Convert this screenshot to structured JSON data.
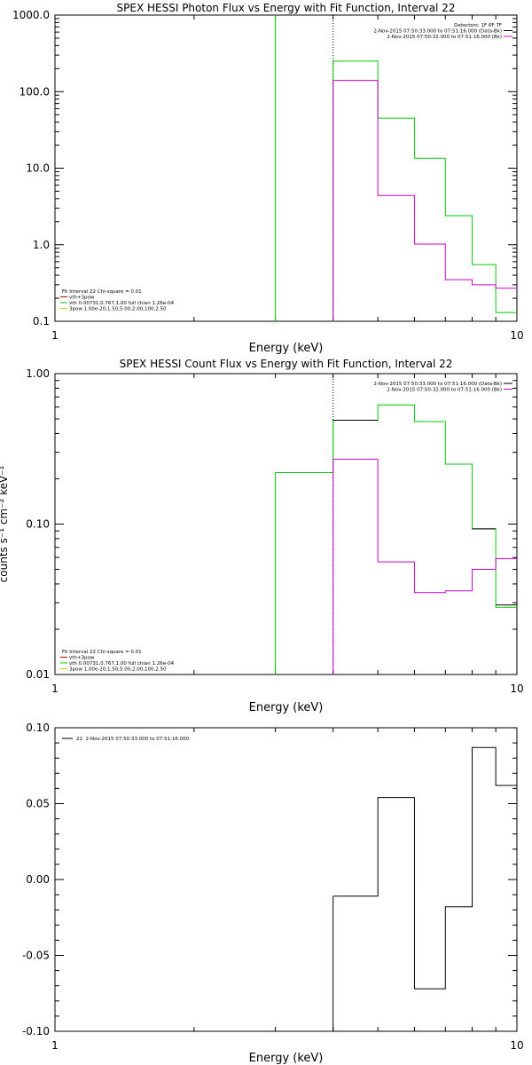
{
  "chart_data": [
    {
      "type": "line",
      "title": "SPEX HESSI Photon Flux vs Energy with Fit Function, Interval 22",
      "xlabel": "Energy (keV)",
      "ylabel": "",
      "xscale": "log",
      "yscale": "log",
      "xlim": [
        1,
        10
      ],
      "ylim": [
        0.1,
        1000
      ],
      "x_ticks": [
        {
          "v": 1,
          "label": "1"
        },
        {
          "v": 10,
          "label": "10"
        }
      ],
      "y_ticks": [
        {
          "v": 0.1,
          "label": "0.1"
        },
        {
          "v": 1,
          "label": "1.0"
        },
        {
          "v": 10,
          "label": "10.0"
        },
        {
          "v": 100,
          "label": "100.0"
        },
        {
          "v": 1000,
          "label": "1000.0"
        }
      ],
      "top_legend": [
        {
          "text": "Detectors: 1F 6F 7F",
          "color": "#000000"
        },
        {
          "text": "2-Nov-2015 07:50:33.000 to 07:51:16.000 (Data-Bk)",
          "color": "#000000"
        },
        {
          "text": "2-Nov-2015 07:50:32.000 to 07:51:16.000 (Bk)",
          "color": "#cc00cc"
        }
      ],
      "fit_legend": [
        {
          "text": "Fit Interval 22   Chi-square = 0.01",
          "color": "#000000"
        },
        {
          "text": "vth+3pow",
          "color": "#cc0000"
        },
        {
          "text": "vth 0.00731,0.767,1.00   full chian 1.26e-04",
          "color": "#00cc00"
        },
        {
          "text": "3pow 1.00e-20,1.50,5.00,2.00,100,2.50",
          "color": "#cccc00"
        }
      ],
      "series": [
        {
          "color": "#00cc00",
          "edges": [
            4,
            5,
            6,
            7,
            8,
            9,
            10
          ],
          "values": [
            250,
            45,
            13.5,
            2.4,
            0.55,
            0.13
          ],
          "left_line": {
            "x": 3,
            "to": 1000
          },
          "step_left": {
            "x": 4,
            "from": 0.1,
            "to": 250
          }
        },
        {
          "color": "#cc00cc",
          "edges": [
            4,
            5,
            6,
            7,
            8,
            9,
            10
          ],
          "values": [
            140,
            4.4,
            1.02,
            0.35,
            0.3,
            0.27
          ],
          "step_left": {
            "x": 4,
            "from": 0.1,
            "to": 140
          }
        }
      ],
      "dotted_line_x": 4
    },
    {
      "type": "line",
      "title": "SPEX HESSI Count Flux vs Energy with Fit Function, Interval 22",
      "xlabel": "Energy (keV)",
      "ylabel": "counts s⁻¹ cm⁻² keV⁻¹",
      "xscale": "log",
      "yscale": "log",
      "xlim": [
        1,
        10
      ],
      "ylim": [
        0.01,
        1
      ],
      "x_ticks": [
        {
          "v": 1,
          "label": "1"
        },
        {
          "v": 10,
          "label": "10"
        }
      ],
      "y_ticks": [
        {
          "v": 0.01,
          "label": "0.01"
        },
        {
          "v": 0.1,
          "label": "0.10"
        },
        {
          "v": 1,
          "label": "1.00"
        }
      ],
      "top_legend": [
        {
          "text": "2-Nov-2015 07:50:33.000 to 07:51:16.000 (Data-Bk)",
          "color": "#000000"
        },
        {
          "text": "2-Nov-2015 07:50:32.000 to 07:51:16.000 (Bk)",
          "color": "#cc00cc"
        }
      ],
      "fit_legend": [
        {
          "text": "Fit Interval 22   Chi-square = 0.01",
          "color": "#000000"
        },
        {
          "text": "vth+3pow",
          "color": "#cc0000"
        },
        {
          "text": "vth 0.00731,0.767,1.00   full chian 1.26e-04",
          "color": "#00cc00"
        },
        {
          "text": "3pow 1.00e-20,1.50,5.00,2.00,100,2.50",
          "color": "#cccc00"
        }
      ],
      "series": [
        {
          "color": "#00cc00",
          "edges": [
            3,
            4,
            5,
            6,
            7,
            8,
            9,
            10
          ],
          "values": [
            0.22,
            0.49,
            0.62,
            0.48,
            0.25,
            0.093,
            0.028
          ],
          "step_left": {
            "x": 3,
            "from": 0.01,
            "to": 0.22
          }
        },
        {
          "color": "#000000",
          "edges": [
            4,
            5,
            8,
            9,
            10
          ],
          "values": [
            0.49,
            0.49,
            0.093,
            0.029
          ],
          "partial": true
        },
        {
          "color": "#cc00cc",
          "edges": [
            4,
            5,
            6,
            7,
            8,
            9,
            10
          ],
          "values": [
            0.27,
            0.056,
            0.035,
            0.036,
            0.05,
            0.059
          ],
          "step_left": {
            "x": 4,
            "from": 0.01,
            "to": 0.27
          }
        }
      ],
      "dotted_line_x": 4
    },
    {
      "type": "line",
      "title": "",
      "xlabel": "Energy (keV)",
      "ylabel": "",
      "xscale": "log",
      "yscale": "linear",
      "xlim": [
        1,
        10
      ],
      "ylim": [
        -0.1,
        0.1
      ],
      "x_ticks": [
        {
          "v": 1,
          "label": "1"
        },
        {
          "v": 10,
          "label": "10"
        }
      ],
      "y_ticks": [
        {
          "v": -0.1,
          "label": "-0.10"
        },
        {
          "v": -0.05,
          "label": "-0.05"
        },
        {
          "v": 0,
          "label": "0.00"
        },
        {
          "v": 0.05,
          "label": "0.05"
        },
        {
          "v": 0.1,
          "label": "0.10"
        }
      ],
      "legend": [
        {
          "text": "22.  2-Nov-2015 07:50:33.000 to 07:51:16.000",
          "color": "#000000"
        }
      ],
      "series": [
        {
          "color": "#000000",
          "edges": [
            4,
            5,
            6,
            7,
            8,
            9,
            10
          ],
          "values": [
            -0.011,
            0.054,
            -0.072,
            -0.018,
            0.087,
            0.062
          ],
          "step_left": {
            "x": 4,
            "from": -0.1,
            "to": -0.011
          }
        }
      ]
    }
  ]
}
